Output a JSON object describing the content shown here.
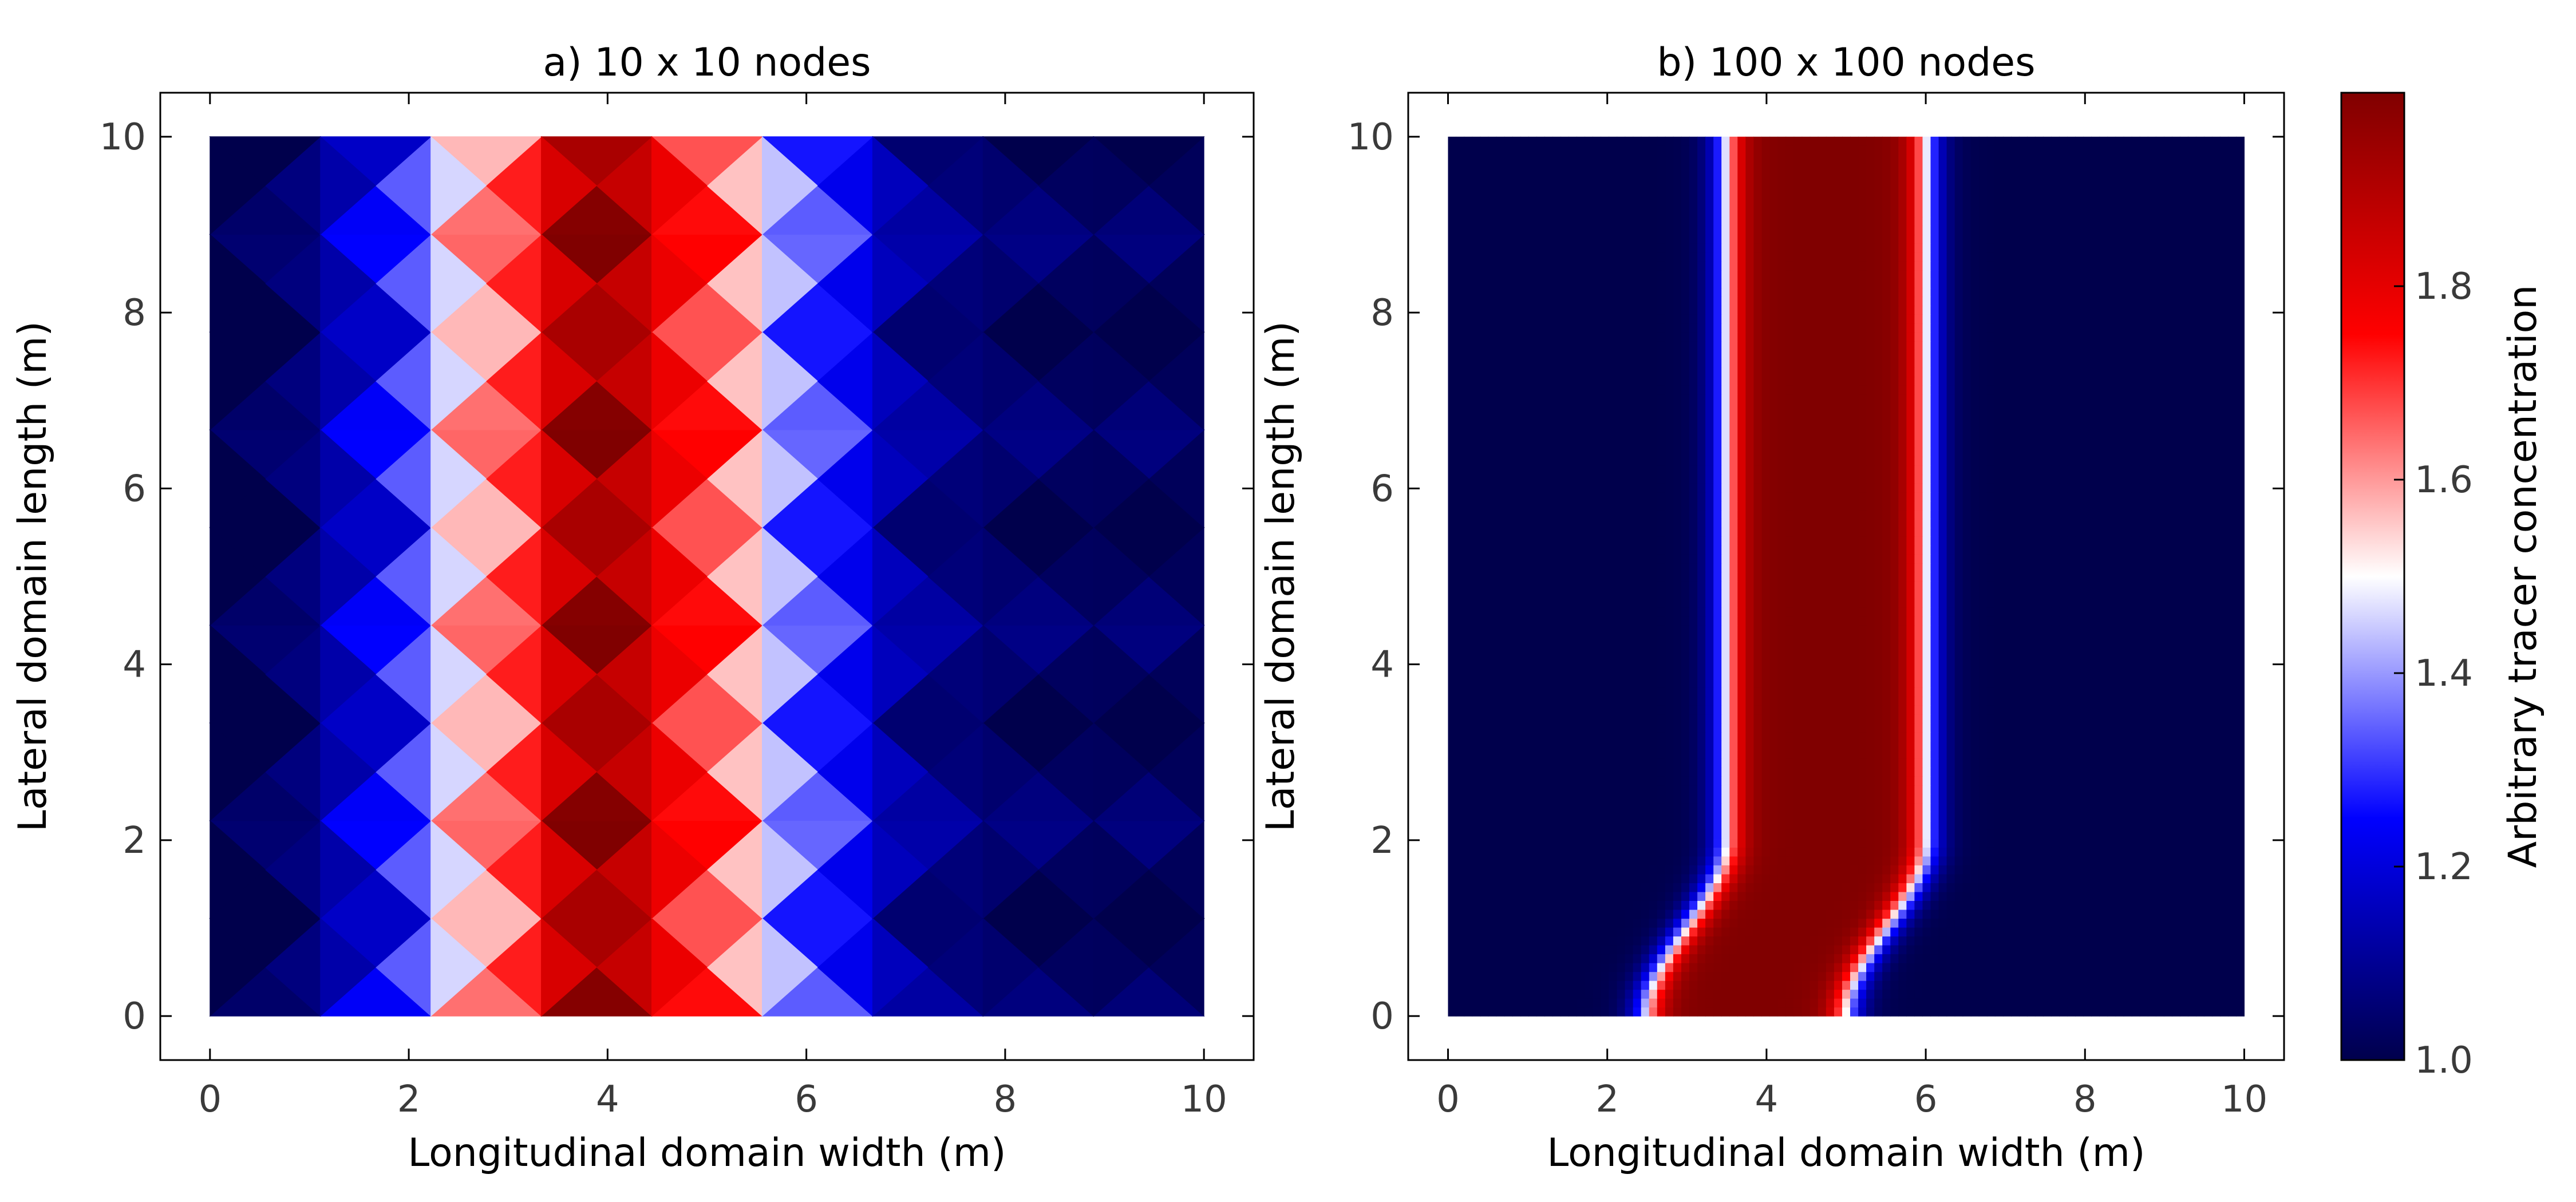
{
  "figure": {
    "colorbar": {
      "label": "Arbitrary tracer concentration",
      "range": [
        1.0,
        2.0
      ],
      "ticks": [
        "1.0",
        "1.2",
        "1.4",
        "1.6",
        "1.8"
      ],
      "tick_values": [
        1.0,
        1.2,
        1.4,
        1.6,
        1.8
      ],
      "colormap": "seismic",
      "colormap_stops": [
        {
          "v": 0.0,
          "color": "#00004c"
        },
        {
          "v": 0.25,
          "color": "#0000ff"
        },
        {
          "v": 0.5,
          "color": "#ffffff"
        },
        {
          "v": 0.75,
          "color": "#ff0000"
        },
        {
          "v": 1.0,
          "color": "#800000"
        }
      ]
    }
  },
  "chart_data": [
    {
      "type": "heatmap",
      "title": "a) 10 x 10 nodes",
      "xlabel": "Longitudinal domain width (m)",
      "ylabel": "Lateral domain length (m)",
      "xlim": [
        -0.5,
        10.5
      ],
      "ylim": [
        -0.5,
        10.5
      ],
      "xticks": [
        0,
        2,
        4,
        6,
        8,
        10
      ],
      "yticks": [
        0,
        2,
        4,
        6,
        8,
        10
      ],
      "xtick_labels": [
        "0",
        "2",
        "4",
        "6",
        "8",
        "10"
      ],
      "ytick_labels": [
        "0",
        "2",
        "4",
        "6",
        "8",
        "10"
      ],
      "node_count": [
        10,
        10
      ],
      "domain": [
        0,
        10
      ],
      "column_centers_x": [
        0.55,
        1.65,
        2.75,
        3.85,
        4.95,
        6.05,
        7.15,
        8.25,
        9.35
      ],
      "column_concentrations": [
        1.0,
        1.2,
        1.6,
        1.95,
        1.7,
        1.3,
        1.08,
        1.03,
        1.02
      ]
    },
    {
      "type": "heatmap",
      "title": "b) 100 x 100 nodes",
      "xlabel": "Longitudinal domain width (m)",
      "ylabel": "Lateral domain length (m)",
      "xlim": [
        -0.5,
        10.5
      ],
      "ylim": [
        -0.5,
        10.5
      ],
      "xticks": [
        0,
        2,
        4,
        6,
        8,
        10
      ],
      "yticks": [
        0,
        2,
        4,
        6,
        8,
        10
      ],
      "xtick_labels": [
        "0",
        "2",
        "4",
        "6",
        "8",
        "10"
      ],
      "ytick_labels": [
        "0",
        "2",
        "4",
        "6",
        "8",
        "10"
      ],
      "node_count": [
        100,
        100
      ],
      "domain": [
        0,
        10
      ],
      "background_concentration": 1.0,
      "plume_concentration": 2.0,
      "plume_left_edge_at_y0": 2.5,
      "plume_left_edge_above_y2": 3.5,
      "plume_right_edge_at_y0": 5.0,
      "plume_right_edge_above_y2": 6.0
    }
  ]
}
